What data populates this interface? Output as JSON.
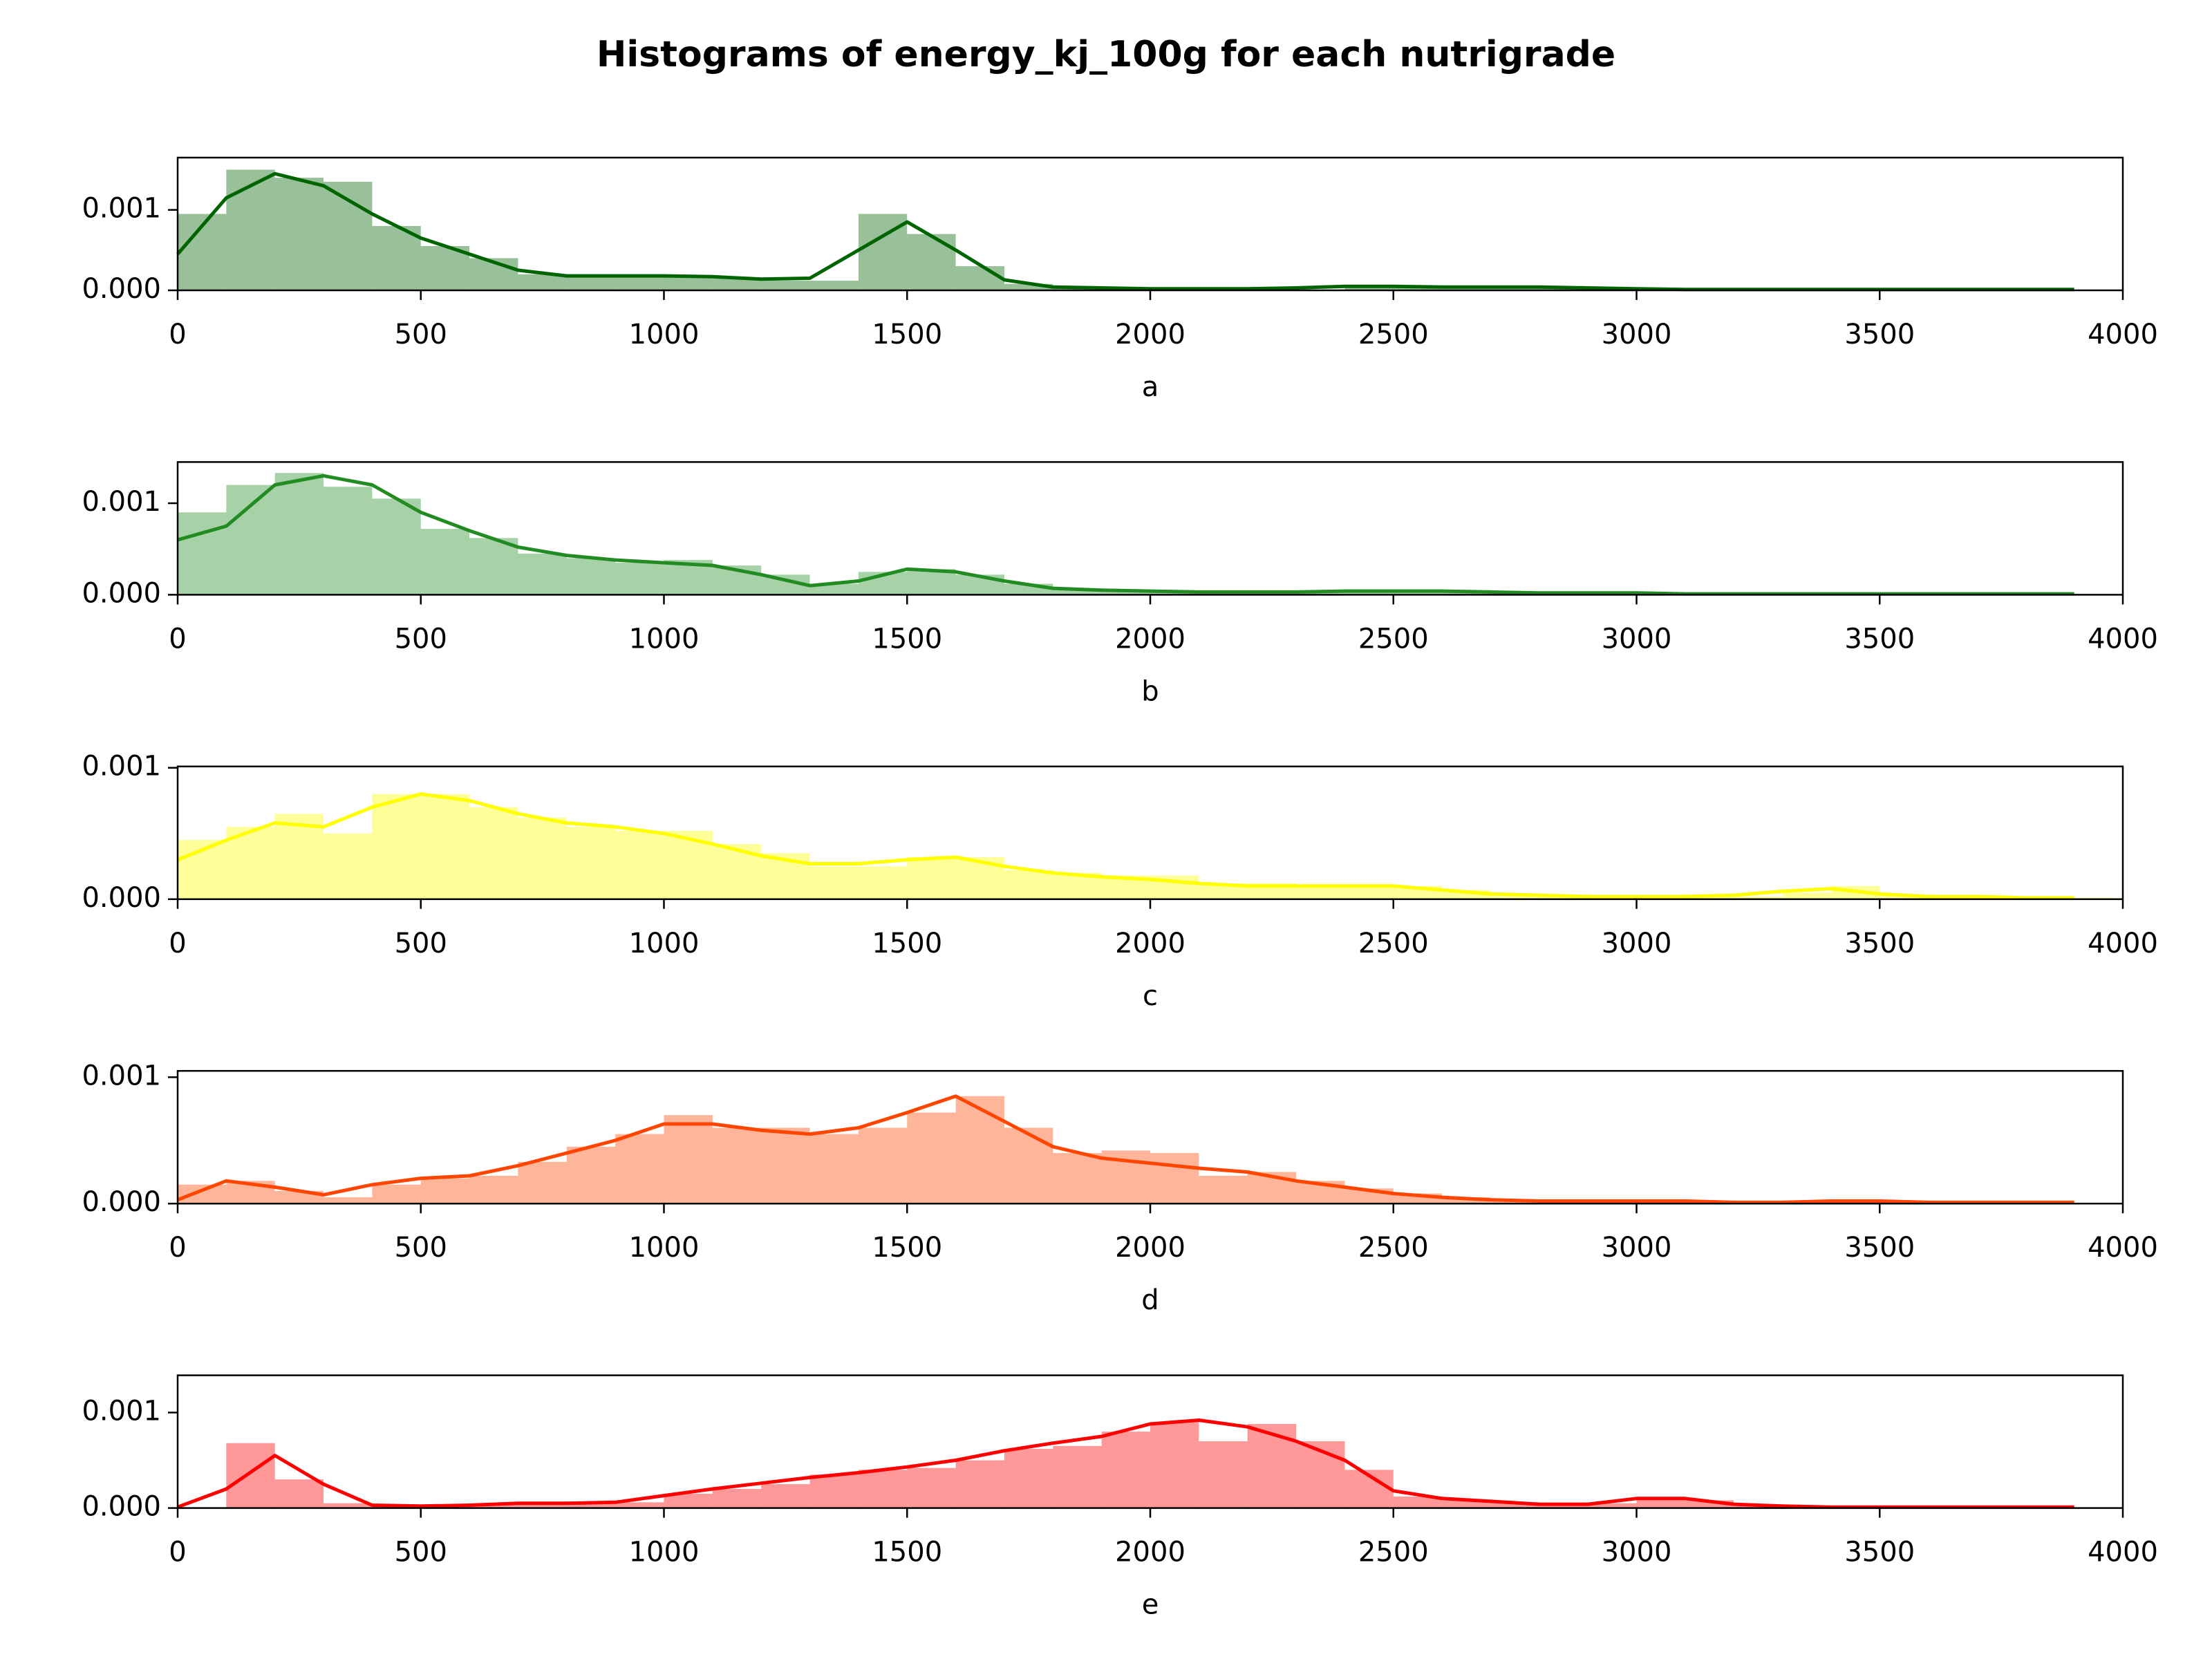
{
  "title": "Histograms of energy_kj_100g for each nutrigrade",
  "chart_data": [
    {
      "type": "histogram",
      "xlabel": "a",
      "color": "#006400",
      "bins": [
        0,
        100,
        200,
        300,
        400,
        500,
        600,
        700,
        800,
        900,
        1000,
        1100,
        1200,
        1300,
        1400,
        1500,
        1600,
        1700,
        1800,
        1900,
        2000,
        2100,
        2200,
        2300,
        2400,
        2500,
        2600,
        2700,
        2800,
        2900,
        3000,
        3100,
        3200,
        3300,
        3400,
        3500,
        3600,
        3700,
        3800,
        3900,
        4000
      ],
      "values": [
        0.00095,
        0.0015,
        0.0014,
        0.00135,
        0.0008,
        0.00055,
        0.0004,
        0.0002,
        0.00018,
        0.00018,
        0.00018,
        0.00015,
        0.00012,
        0.00012,
        0.00095,
        0.0007,
        0.0003,
        8e-05,
        3e-05,
        2e-05,
        1e-05,
        1e-05,
        1e-05,
        1e-05,
        4e-05,
        4e-05,
        4e-05,
        4e-05,
        4e-05,
        1e-05,
        1e-05,
        1e-05,
        1e-05,
        1e-05,
        1e-05,
        1e-05,
        1e-05,
        1e-05,
        1e-05,
        0
      ],
      "kde": {
        "x": [
          0,
          100,
          200,
          300,
          400,
          500,
          600,
          700,
          800,
          900,
          1000,
          1100,
          1200,
          1300,
          1400,
          1500,
          1600,
          1700,
          1800,
          1900,
          2000,
          2100,
          2200,
          2300,
          2400,
          2500,
          2600,
          2700,
          2800,
          2900,
          3000,
          3100,
          3200,
          3300,
          3400,
          3500,
          3600,
          3700,
          3800,
          3900
        ],
        "values": [
          0.00045,
          0.00115,
          0.00145,
          0.0013,
          0.00095,
          0.00065,
          0.00045,
          0.00025,
          0.00018,
          0.00018,
          0.00018,
          0.00017,
          0.00014,
          0.00015,
          0.0005,
          0.00085,
          0.0005,
          0.00013,
          4e-05,
          3e-05,
          2e-05,
          2e-05,
          2e-05,
          3e-05,
          5e-05,
          5e-05,
          4e-05,
          4e-05,
          4e-05,
          3e-05,
          2e-05,
          1e-05,
          1e-05,
          1e-05,
          1e-05,
          1e-05,
          1e-05,
          1e-05,
          1e-05,
          1e-05
        ]
      },
      "xlim": [
        0,
        4000
      ],
      "xticks": [
        0,
        500,
        1000,
        1500,
        2000,
        2500,
        3000,
        3500,
        4000
      ],
      "ylim": [
        0,
        0.00165
      ],
      "yticks": [
        {
          "value": 0,
          "label": "0.000"
        },
        {
          "value": 0.001,
          "label": "0.001"
        }
      ]
    },
    {
      "type": "histogram",
      "xlabel": "b",
      "color": "#228b22",
      "bins": [
        0,
        100,
        200,
        300,
        400,
        500,
        600,
        700,
        800,
        900,
        1000,
        1100,
        1200,
        1300,
        1400,
        1500,
        1600,
        1700,
        1800,
        1900,
        2000,
        2100,
        2200,
        2300,
        2400,
        2500,
        2600,
        2700,
        2800,
        2900,
        3000,
        3100,
        3200,
        3300,
        3400,
        3500,
        3600,
        3700,
        3800,
        3900,
        4000
      ],
      "values": [
        0.0009,
        0.0012,
        0.00133,
        0.00118,
        0.00105,
        0.00072,
        0.00062,
        0.00045,
        0.0004,
        0.00035,
        0.00038,
        0.00032,
        0.00022,
        0.00012,
        0.00025,
        0.00028,
        0.00022,
        0.00012,
        6e-05,
        5e-05,
        4e-05,
        3e-05,
        3e-05,
        4e-05,
        5e-05,
        5e-05,
        4e-05,
        3e-05,
        2e-05,
        2e-05,
        1e-05,
        1e-05,
        1e-05,
        1e-05,
        1e-05,
        1e-05,
        1e-05,
        1e-05,
        1e-05,
        0
      ],
      "kde": {
        "x": [
          0,
          100,
          200,
          300,
          400,
          500,
          600,
          700,
          800,
          900,
          1000,
          1100,
          1200,
          1300,
          1400,
          1500,
          1600,
          1700,
          1800,
          1900,
          2000,
          2100,
          2200,
          2300,
          2400,
          2500,
          2600,
          2700,
          2800,
          2900,
          3000,
          3100,
          3200,
          3300,
          3400,
          3500,
          3600,
          3700,
          3800,
          3900
        ],
        "values": [
          0.0006,
          0.00075,
          0.0012,
          0.0013,
          0.0012,
          0.0009,
          0.0007,
          0.00052,
          0.00043,
          0.00038,
          0.00035,
          0.00032,
          0.00022,
          0.0001,
          0.00015,
          0.00028,
          0.00025,
          0.00015,
          7e-05,
          5e-05,
          4e-05,
          3e-05,
          3e-05,
          3e-05,
          4e-05,
          4e-05,
          4e-05,
          3e-05,
          2e-05,
          2e-05,
          2e-05,
          1e-05,
          1e-05,
          1e-05,
          1e-05,
          1e-05,
          1e-05,
          1e-05,
          1e-05,
          1e-05
        ]
      },
      "xlim": [
        0,
        4000
      ],
      "xticks": [
        0,
        500,
        1000,
        1500,
        2000,
        2500,
        3000,
        3500,
        4000
      ],
      "ylim": [
        0,
        0.00145
      ],
      "yticks": [
        {
          "value": 0,
          "label": "0.000"
        },
        {
          "value": 0.001,
          "label": "0.001"
        }
      ]
    },
    {
      "type": "histogram",
      "xlabel": "c",
      "color": "#ffff00",
      "bins": [
        0,
        100,
        200,
        300,
        400,
        500,
        600,
        700,
        800,
        900,
        1000,
        1100,
        1200,
        1300,
        1400,
        1500,
        1600,
        1700,
        1800,
        1900,
        2000,
        2100,
        2200,
        2300,
        2400,
        2500,
        2600,
        2700,
        2800,
        2900,
        3000,
        3100,
        3200,
        3300,
        3400,
        3500,
        3600,
        3700,
        3800,
        3900,
        4000
      ],
      "values": [
        0.00045,
        0.00055,
        0.00065,
        0.0005,
        0.0008,
        0.0008,
        0.0007,
        0.00062,
        0.00055,
        0.00052,
        0.00052,
        0.00042,
        0.00035,
        0.00025,
        0.00025,
        0.00032,
        0.00032,
        0.00022,
        0.0002,
        0.00018,
        0.00018,
        0.00012,
        0.00012,
        0.0001,
        0.0001,
        0.0001,
        7e-05,
        4e-05,
        3e-05,
        2e-05,
        2e-05,
        2e-05,
        2e-05,
        5e-05,
        0.0001,
        3e-05,
        2e-05,
        2e-05,
        1e-05,
        1e-05
      ],
      "kde": {
        "x": [
          0,
          100,
          200,
          300,
          400,
          500,
          600,
          700,
          800,
          900,
          1000,
          1100,
          1200,
          1300,
          1400,
          1500,
          1600,
          1700,
          1800,
          1900,
          2000,
          2100,
          2200,
          2300,
          2400,
          2500,
          2600,
          2700,
          2800,
          2900,
          3000,
          3100,
          3200,
          3300,
          3400,
          3500,
          3600,
          3700,
          3800,
          3900
        ],
        "values": [
          0.0003,
          0.00045,
          0.00058,
          0.00055,
          0.0007,
          0.0008,
          0.00075,
          0.00065,
          0.00058,
          0.00055,
          0.0005,
          0.00042,
          0.00033,
          0.00027,
          0.00027,
          0.0003,
          0.00032,
          0.00025,
          0.0002,
          0.00017,
          0.00015,
          0.00012,
          0.0001,
          0.0001,
          0.0001,
          0.0001,
          7e-05,
          4e-05,
          3e-05,
          2e-05,
          2e-05,
          2e-05,
          3e-05,
          6e-05,
          8e-05,
          4e-05,
          2e-05,
          2e-05,
          1e-05,
          1e-05
        ]
      },
      "xlim": [
        0,
        4000
      ],
      "xticks": [
        0,
        500,
        1000,
        1500,
        2000,
        2500,
        3000,
        3500,
        4000
      ],
      "ylim": [
        0,
        0.00101
      ],
      "yticks": [
        {
          "value": 0,
          "label": "0.000"
        },
        {
          "value": 0.001,
          "label": "0.001"
        }
      ]
    },
    {
      "type": "histogram",
      "xlabel": "d",
      "color": "#ff4500",
      "bins": [
        0,
        100,
        200,
        300,
        400,
        500,
        600,
        700,
        800,
        900,
        1000,
        1100,
        1200,
        1300,
        1400,
        1500,
        1600,
        1700,
        1800,
        1900,
        2000,
        2100,
        2200,
        2300,
        2400,
        2500,
        2600,
        2700,
        2800,
        2900,
        3000,
        3100,
        3200,
        3300,
        3400,
        3500,
        3600,
        3700,
        3800,
        3900,
        4000
      ],
      "values": [
        0.00015,
        0.00018,
        0.0001,
        5e-05,
        0.00015,
        0.0002,
        0.00022,
        0.00033,
        0.00045,
        0.00055,
        0.0007,
        0.0006,
        0.0006,
        0.00055,
        0.0006,
        0.00072,
        0.00085,
        0.0006,
        0.0004,
        0.00042,
        0.0004,
        0.00022,
        0.00025,
        0.00018,
        0.00012,
        8e-05,
        5e-05,
        3e-05,
        2e-05,
        2e-05,
        3e-05,
        2e-05,
        1e-05,
        1e-05,
        3e-05,
        2e-05,
        1e-05,
        2e-05,
        1e-05,
        0
      ],
      "kde": {
        "x": [
          0,
          100,
          200,
          300,
          400,
          500,
          600,
          700,
          800,
          900,
          1000,
          1100,
          1200,
          1300,
          1400,
          1500,
          1600,
          1700,
          1800,
          1900,
          2000,
          2100,
          2200,
          2300,
          2400,
          2500,
          2600,
          2700,
          2800,
          2900,
          3000,
          3100,
          3200,
          3300,
          3400,
          3500,
          3600,
          3700,
          3800,
          3900
        ],
        "values": [
          3e-05,
          0.00018,
          0.00013,
          7e-05,
          0.00015,
          0.0002,
          0.00022,
          0.0003,
          0.0004,
          0.0005,
          0.00063,
          0.00063,
          0.00058,
          0.00055,
          0.0006,
          0.00072,
          0.00085,
          0.00065,
          0.00045,
          0.00036,
          0.00032,
          0.00028,
          0.00025,
          0.00018,
          0.00013,
          8e-05,
          5e-05,
          3e-05,
          2e-05,
          2e-05,
          2e-05,
          2e-05,
          1e-05,
          1e-05,
          2e-05,
          2e-05,
          1e-05,
          1e-05,
          1e-05,
          1e-05
        ]
      },
      "xlim": [
        0,
        4000
      ],
      "xticks": [
        0,
        500,
        1000,
        1500,
        2000,
        2500,
        3000,
        3500,
        4000
      ],
      "ylim": [
        0,
        0.00105
      ],
      "yticks": [
        {
          "value": 0,
          "label": "0.000"
        },
        {
          "value": 0.001,
          "label": "0.001"
        }
      ]
    },
    {
      "type": "histogram",
      "xlabel": "e",
      "color": "#ff0000",
      "bins": [
        0,
        100,
        200,
        300,
        400,
        500,
        600,
        700,
        800,
        900,
        1000,
        1100,
        1200,
        1300,
        1400,
        1500,
        1600,
        1700,
        1800,
        1900,
        2000,
        2100,
        2200,
        2300,
        2400,
        2500,
        2600,
        2700,
        2800,
        2900,
        3000,
        3100,
        3200,
        3300,
        3400,
        3500,
        3600,
        3700,
        3800,
        3900,
        4000
      ],
      "values": [
        0,
        0.00068,
        0.0003,
        5e-05,
        2e-05,
        2e-05,
        3e-05,
        5e-05,
        5e-05,
        6e-05,
        0.00015,
        0.0002,
        0.00025,
        0.00035,
        0.0004,
        0.00042,
        0.0005,
        0.00062,
        0.00065,
        0.0008,
        0.0009,
        0.0007,
        0.00088,
        0.0007,
        0.0004,
        0.00012,
        8e-05,
        6e-05,
        3e-05,
        5e-05,
        0.0001,
        8e-05,
        2e-05,
        1e-05,
        1e-05,
        1e-05,
        1e-05,
        1e-05,
        1e-05,
        0
      ],
      "kde": {
        "x": [
          0,
          100,
          200,
          300,
          400,
          500,
          600,
          700,
          800,
          900,
          1000,
          1100,
          1200,
          1300,
          1400,
          1500,
          1600,
          1700,
          1800,
          1900,
          2000,
          2100,
          2200,
          2300,
          2400,
          2500,
          2600,
          2700,
          2800,
          2900,
          3000,
          3100,
          3200,
          3300,
          3400,
          3500,
          3600,
          3700,
          3800,
          3900
        ],
        "values": [
          1e-05,
          0.0002,
          0.00055,
          0.00025,
          3e-05,
          2e-05,
          3e-05,
          5e-05,
          5e-05,
          6e-05,
          0.00013,
          0.0002,
          0.00026,
          0.00032,
          0.00037,
          0.00043,
          0.0005,
          0.0006,
          0.00068,
          0.00075,
          0.00088,
          0.00092,
          0.00085,
          0.0007,
          0.0005,
          0.00018,
          0.0001,
          7e-05,
          4e-05,
          4e-05,
          0.0001,
          0.0001,
          4e-05,
          2e-05,
          1e-05,
          1e-05,
          1e-05,
          1e-05,
          1e-05,
          1e-05
        ]
      },
      "xlim": [
        0,
        4000
      ],
      "xticks": [
        0,
        500,
        1000,
        1500,
        2000,
        2500,
        3000,
        3500,
        4000
      ],
      "ylim": [
        0,
        0.00139
      ],
      "yticks": [
        {
          "value": 0,
          "label": "0.000"
        },
        {
          "value": 0.001,
          "label": "0.001"
        }
      ]
    }
  ]
}
